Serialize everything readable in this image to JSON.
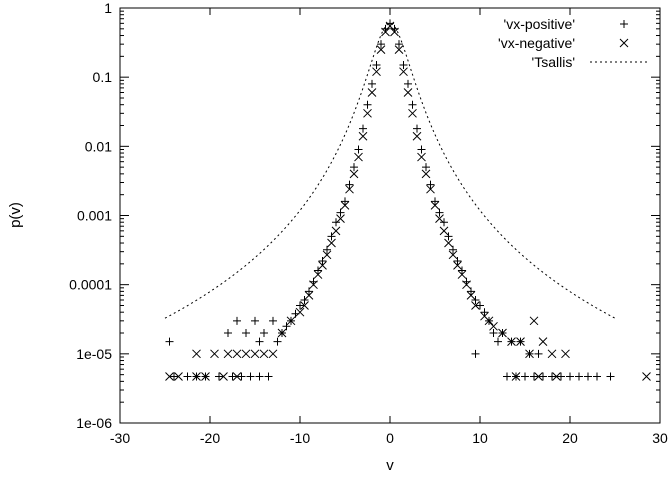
{
  "chart_data": {
    "type": "scatter",
    "title": "",
    "xlabel": "v",
    "ylabel": "p(v)",
    "xlim": [
      -30,
      30
    ],
    "ylim": [
      1e-06,
      1
    ],
    "y_scale": "log",
    "grid": false,
    "legend_position": "top-right",
    "x_ticks": [
      -30,
      -20,
      -10,
      0,
      10,
      20,
      30
    ],
    "x_tick_labels": [
      "-30",
      "-20",
      "-10",
      "0",
      "10",
      "20",
      "30"
    ],
    "y_ticks": [
      1e-06,
      1e-05,
      0.0001,
      0.001,
      0.01,
      0.1,
      1
    ],
    "y_tick_labels": [
      "1e-06",
      "1e-05",
      "0.0001",
      "0.001",
      "0.01",
      "0.1",
      "1"
    ],
    "series": [
      {
        "name": "'vx-positive'",
        "marker": "plus",
        "points": [
          [
            0.0,
            0.6
          ],
          [
            0.5,
            0.5
          ],
          [
            -0.5,
            0.5
          ],
          [
            1.0,
            0.3
          ],
          [
            -1.0,
            0.3
          ],
          [
            1.5,
            0.15
          ],
          [
            -1.5,
            0.15
          ],
          [
            2.0,
            0.08
          ],
          [
            -2.0,
            0.08
          ],
          [
            2.5,
            0.04
          ],
          [
            -2.5,
            0.04
          ],
          [
            3.0,
            0.018
          ],
          [
            -3.0,
            0.018
          ],
          [
            3.5,
            0.009
          ],
          [
            -3.5,
            0.009
          ],
          [
            4.0,
            0.005
          ],
          [
            -4.0,
            0.005
          ],
          [
            4.5,
            0.0028
          ],
          [
            -4.5,
            0.0028
          ],
          [
            5.0,
            0.0016
          ],
          [
            -5.0,
            0.0016
          ],
          [
            5.5,
            0.0011
          ],
          [
            -5.5,
            0.0011
          ],
          [
            6.0,
            0.0008
          ],
          [
            -6.0,
            0.0008
          ],
          [
            6.5,
            0.0005
          ],
          [
            -6.5,
            0.0005
          ],
          [
            7.0,
            0.00032
          ],
          [
            -7.0,
            0.00032
          ],
          [
            7.5,
            0.00022
          ],
          [
            -7.5,
            0.00022
          ],
          [
            8.0,
            0.00016
          ],
          [
            -8.0,
            0.00016
          ],
          [
            8.5,
            0.00011
          ],
          [
            -8.5,
            0.00011
          ],
          [
            9.0,
            8e-05
          ],
          [
            -9.0,
            8e-05
          ],
          [
            9.5,
            6e-05
          ],
          [
            -9.5,
            6e-05
          ],
          [
            10.0,
            5e-05
          ],
          [
            -10.0,
            5e-05
          ],
          [
            10.5,
            4e-05
          ],
          [
            -10.5,
            3.8e-05
          ],
          [
            11.0,
            3e-05
          ],
          [
            -11.0,
            3e-05
          ],
          [
            11.5,
            2e-05
          ],
          [
            -11.5,
            2.5e-05
          ],
          [
            12.0,
            1.5e-05
          ],
          [
            -12.0,
            2e-05
          ],
          [
            -12.5,
            1.5e-05
          ],
          [
            -13.0,
            3e-05
          ],
          [
            -14.0,
            2e-05
          ],
          [
            -15.0,
            3e-05
          ],
          [
            -16.0,
            2e-05
          ],
          [
            -17.0,
            3e-05
          ],
          [
            -18.0,
            2e-05
          ],
          [
            -14.5,
            1.5e-05
          ],
          [
            -24.5,
            1.5e-05
          ],
          [
            -13.5,
            4.7e-06
          ],
          [
            -14.5,
            4.7e-06
          ],
          [
            -15.5,
            4.7e-06
          ],
          [
            -16.5,
            4.7e-06
          ],
          [
            -17.5,
            4.7e-06
          ],
          [
            -19.0,
            4.7e-06
          ],
          [
            -20.5,
            4.7e-06
          ],
          [
            -21.5,
            4.7e-06
          ],
          [
            -22.5,
            4.7e-06
          ],
          [
            -24.0,
            4.7e-06
          ],
          [
            12.5,
            2e-05
          ],
          [
            13.5,
            1.5e-05
          ],
          [
            14.5,
            1.5e-05
          ],
          [
            15.5,
            1e-05
          ],
          [
            16.5,
            1e-05
          ],
          [
            9.5,
            1e-05
          ],
          [
            13.0,
            4.7e-06
          ],
          [
            14.0,
            4.7e-06
          ],
          [
            15.0,
            4.7e-06
          ],
          [
            16.0,
            4.7e-06
          ],
          [
            17.0,
            4.7e-06
          ],
          [
            18.0,
            4.7e-06
          ],
          [
            19.0,
            4.7e-06
          ],
          [
            20.0,
            4.7e-06
          ],
          [
            21.0,
            4.7e-06
          ],
          [
            22.0,
            4.7e-06
          ],
          [
            23.0,
            4.7e-06
          ],
          [
            24.5,
            4.7e-06
          ]
        ]
      },
      {
        "name": "'vx-negative'",
        "marker": "cross",
        "points": [
          [
            0.0,
            0.55
          ],
          [
            0.5,
            0.45
          ],
          [
            -0.5,
            0.45
          ],
          [
            1.0,
            0.25
          ],
          [
            -1.0,
            0.25
          ],
          [
            1.5,
            0.12
          ],
          [
            -1.5,
            0.12
          ],
          [
            2.0,
            0.06
          ],
          [
            -2.0,
            0.06
          ],
          [
            2.5,
            0.03
          ],
          [
            -2.5,
            0.03
          ],
          [
            3.0,
            0.014
          ],
          [
            -3.0,
            0.014
          ],
          [
            3.5,
            0.007
          ],
          [
            -3.5,
            0.007
          ],
          [
            4.0,
            0.004
          ],
          [
            -4.0,
            0.004
          ],
          [
            4.5,
            0.0024
          ],
          [
            -4.5,
            0.0024
          ],
          [
            5.0,
            0.0014
          ],
          [
            -5.0,
            0.0014
          ],
          [
            5.5,
            0.0009
          ],
          [
            -5.5,
            0.0009
          ],
          [
            6.0,
            0.0006
          ],
          [
            -6.0,
            0.0006
          ],
          [
            6.5,
            0.0004
          ],
          [
            -6.5,
            0.0004
          ],
          [
            7.0,
            0.00027
          ],
          [
            -7.0,
            0.00027
          ],
          [
            7.5,
            0.00019
          ],
          [
            -7.5,
            0.00019
          ],
          [
            8.0,
            0.00014
          ],
          [
            -8.0,
            0.00014
          ],
          [
            8.5,
            0.0001
          ],
          [
            -8.5,
            0.0001
          ],
          [
            9.0,
            7e-05
          ],
          [
            -9.0,
            7e-05
          ],
          [
            9.5,
            5e-05
          ],
          [
            -9.5,
            5e-05
          ],
          [
            10.5,
            3.5e-05
          ],
          [
            -10.0,
            4e-05
          ],
          [
            11.0,
            3e-05
          ],
          [
            -11.0,
            3e-05
          ],
          [
            11.5,
            2.5e-05
          ],
          [
            -12.0,
            2e-05
          ],
          [
            12.5,
            2e-05
          ],
          [
            13.5,
            1.5e-05
          ],
          [
            14.5,
            1.5e-05
          ],
          [
            15.5,
            1e-05
          ],
          [
            16.0,
            3e-05
          ],
          [
            17.0,
            1.5e-05
          ],
          [
            18.0,
            1e-05
          ],
          [
            19.5,
            1e-05
          ],
          [
            -13.0,
            1e-05
          ],
          [
            -14.0,
            1e-05
          ],
          [
            -15.0,
            1e-05
          ],
          [
            -16.0,
            1e-05
          ],
          [
            -17.0,
            1e-05
          ],
          [
            -18.0,
            1e-05
          ],
          [
            -19.5,
            1e-05
          ],
          [
            -21.5,
            1e-05
          ],
          [
            -17.0,
            4.7e-06
          ],
          [
            -18.5,
            4.7e-06
          ],
          [
            -20.5,
            4.7e-06
          ],
          [
            -21.5,
            4.7e-06
          ],
          [
            -23.5,
            4.7e-06
          ],
          [
            -24.5,
            4.7e-06
          ],
          [
            14.0,
            4.7e-06
          ],
          [
            16.5,
            4.7e-06
          ],
          [
            18.5,
            4.7e-06
          ],
          [
            28.5,
            4.7e-06
          ]
        ]
      },
      {
        "name": "'Tsallis'",
        "marker": "dotted-line",
        "q": 1.5,
        "amplitude": 0.6,
        "scale": 0.43,
        "x_range": [
          -25,
          25
        ]
      }
    ]
  }
}
